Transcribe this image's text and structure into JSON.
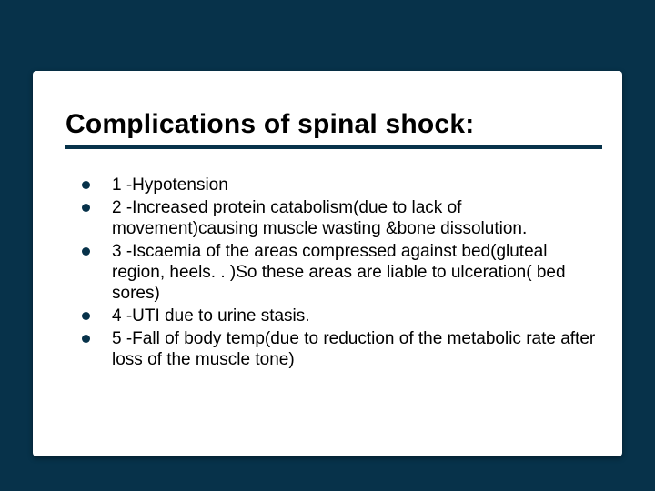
{
  "slide": {
    "background_color": "#07324a",
    "card_background": "#ffffff",
    "title": "Complications of spinal shock:",
    "title_fontsize": 30,
    "title_color": "#000000",
    "underline_color": "#07324a",
    "underline_height": 4,
    "bullet_color": "#07324a",
    "body_fontsize": 19,
    "body_line_height": 23,
    "body_color": "#000000",
    "bullets": [
      "1 -Hypotension",
      "2 -Increased protein catabolism(due to lack of movement)causing muscle wasting &bone dissolution.",
      "3 -Iscaemia of the areas compressed against bed(gluteal region, heels. . )So these areas are liable to ulceration( bed sores)",
      "4 -UTI due to urine stasis.",
      "5 -Fall of body temp(due to reduction of the metabolic rate after loss of the muscle tone)"
    ]
  }
}
